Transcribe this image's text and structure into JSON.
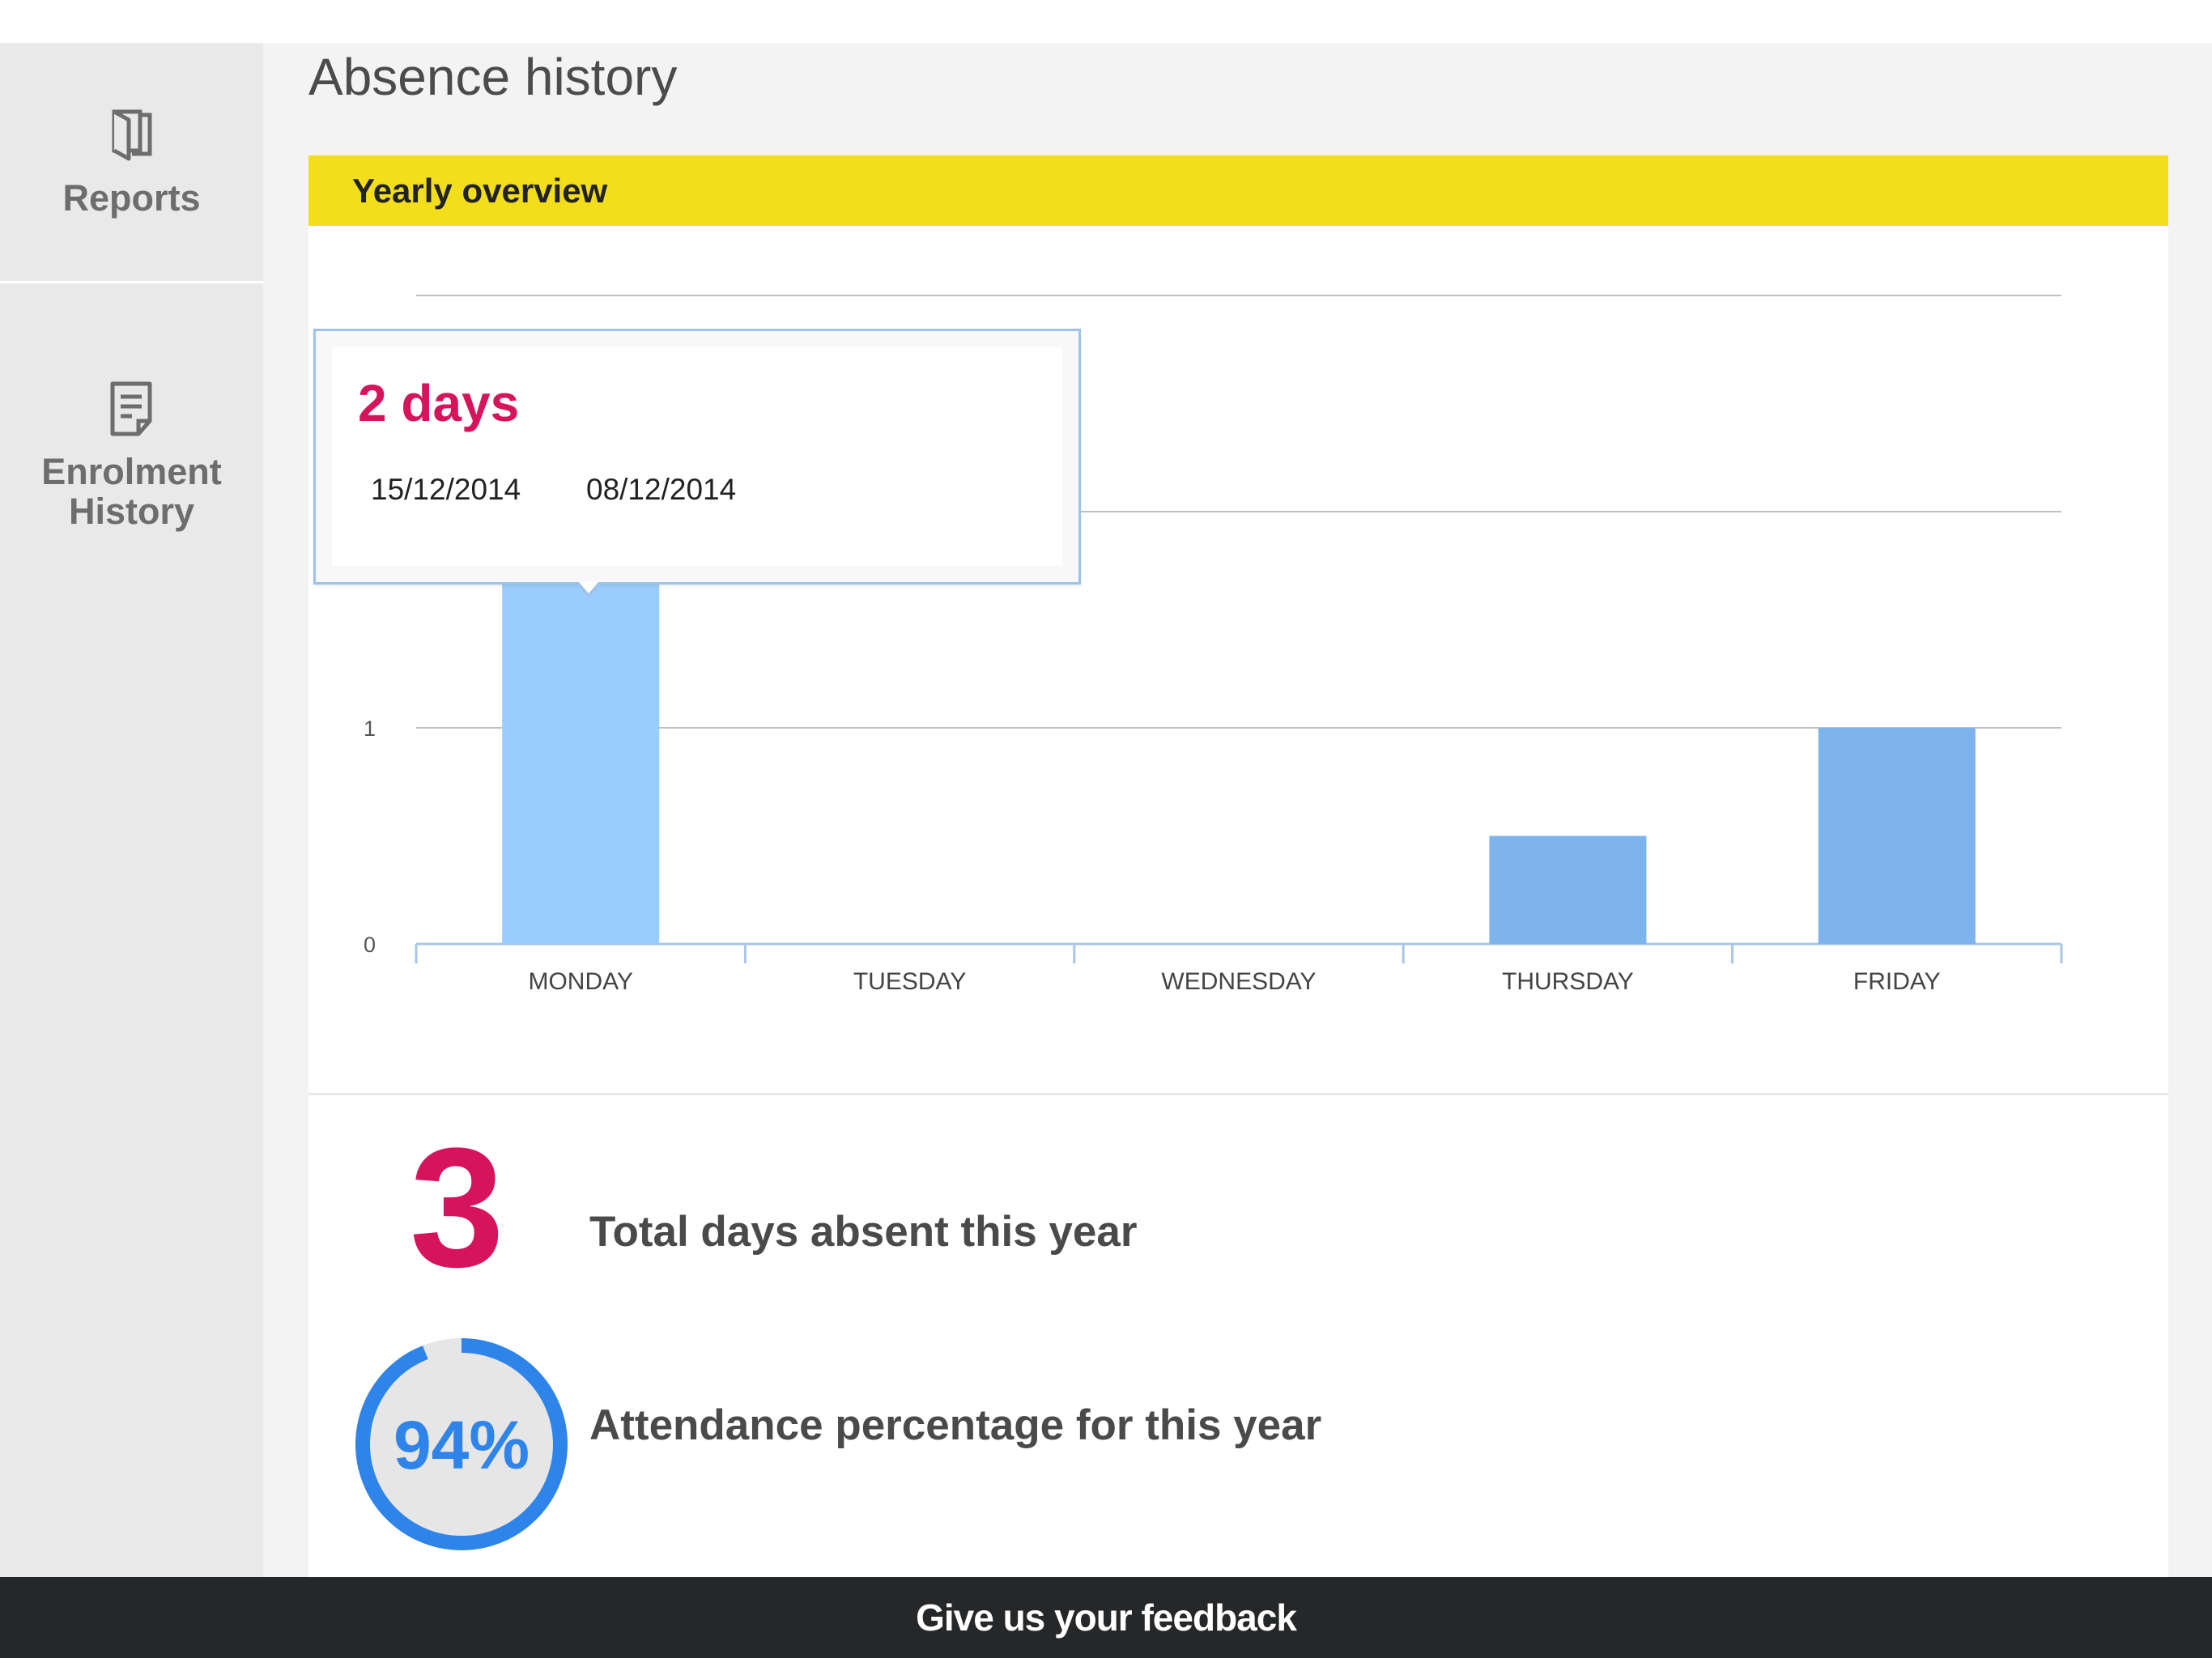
{
  "sidebar": {
    "items": [
      {
        "label": "Reports",
        "icon": "book-icon"
      },
      {
        "label": "Enrolment",
        "label2": "History",
        "icon": "document-icon"
      }
    ]
  },
  "page": {
    "title": "Absence history"
  },
  "card": {
    "header": "Yearly overview"
  },
  "tooltip": {
    "value": "2 days",
    "dates": [
      "15/12/2014",
      "08/12/2014"
    ]
  },
  "chart_data": {
    "type": "bar",
    "categories": [
      "MONDAY",
      "TUESDAY",
      "WEDNESDAY",
      "THURSDAY",
      "FRIDAY"
    ],
    "values": [
      2,
      0,
      0,
      0.5,
      1
    ],
    "ylim": [
      0,
      3
    ],
    "yticks": [
      "0",
      "1",
      "2"
    ],
    "grid": true,
    "highlighted_category": "MONDAY",
    "colors": {
      "bar": "#7db4ec",
      "highlight": "#9acdfd",
      "grid": "#c0c0c0",
      "axis": "#a9c6e6"
    }
  },
  "stats": {
    "days_absent": {
      "value": "3",
      "label": "Total days absent this year"
    },
    "attendance": {
      "value": "94%",
      "fraction": 0.94,
      "label": "Attendance percentage for this year",
      "color": "#2f84ea"
    }
  },
  "footer": {
    "label": "Give us your feedback"
  },
  "colors": {
    "accent_pink": "#d6145c",
    "header_yellow": "#f2de1b",
    "footer_bg": "#262729"
  }
}
